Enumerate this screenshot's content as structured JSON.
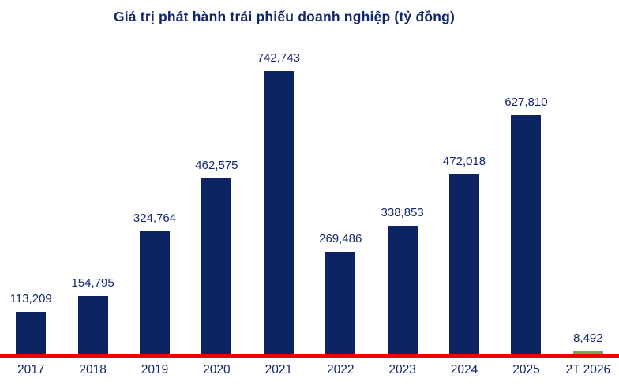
{
  "title": "Giá trị phát hành trái phiếu doanh nghiệp (tỷ đồng)",
  "colors": {
    "bar_navy": "#0d2462",
    "bar_green": "#70a850",
    "axis_red": "#ee0000",
    "text_navy": "#12276b",
    "background": "#ffffff"
  },
  "chart_data": {
    "type": "bar",
    "title": "Giá trị phát hành trái phiếu doanh nghiệp (tỷ đồng)",
    "categories": [
      "2017",
      "2018",
      "2019",
      "2020",
      "2021",
      "2022",
      "2023",
      "2024",
      "2025",
      "2T 2026"
    ],
    "values": [
      113209,
      154795,
      324764,
      462575,
      742743,
      269486,
      338853,
      472018,
      627810,
      8492
    ],
    "value_labels": [
      "113,209",
      "154,795",
      "324,764",
      "462,575",
      "742,743",
      "269,486",
      "338,853",
      "472,018",
      "627,810",
      "8,492"
    ],
    "bar_colors": [
      "#0d2462",
      "#0d2462",
      "#0d2462",
      "#0d2462",
      "#0d2462",
      "#0d2462",
      "#0d2462",
      "#0d2462",
      "#0d2462",
      "#70a850"
    ],
    "xlabel": "",
    "ylabel": "",
    "ylim": [
      0,
      742743
    ],
    "grid": false,
    "legend": false,
    "baseline_color": "#ee0000",
    "data_labels": true,
    "units": "tỷ đồng"
  }
}
